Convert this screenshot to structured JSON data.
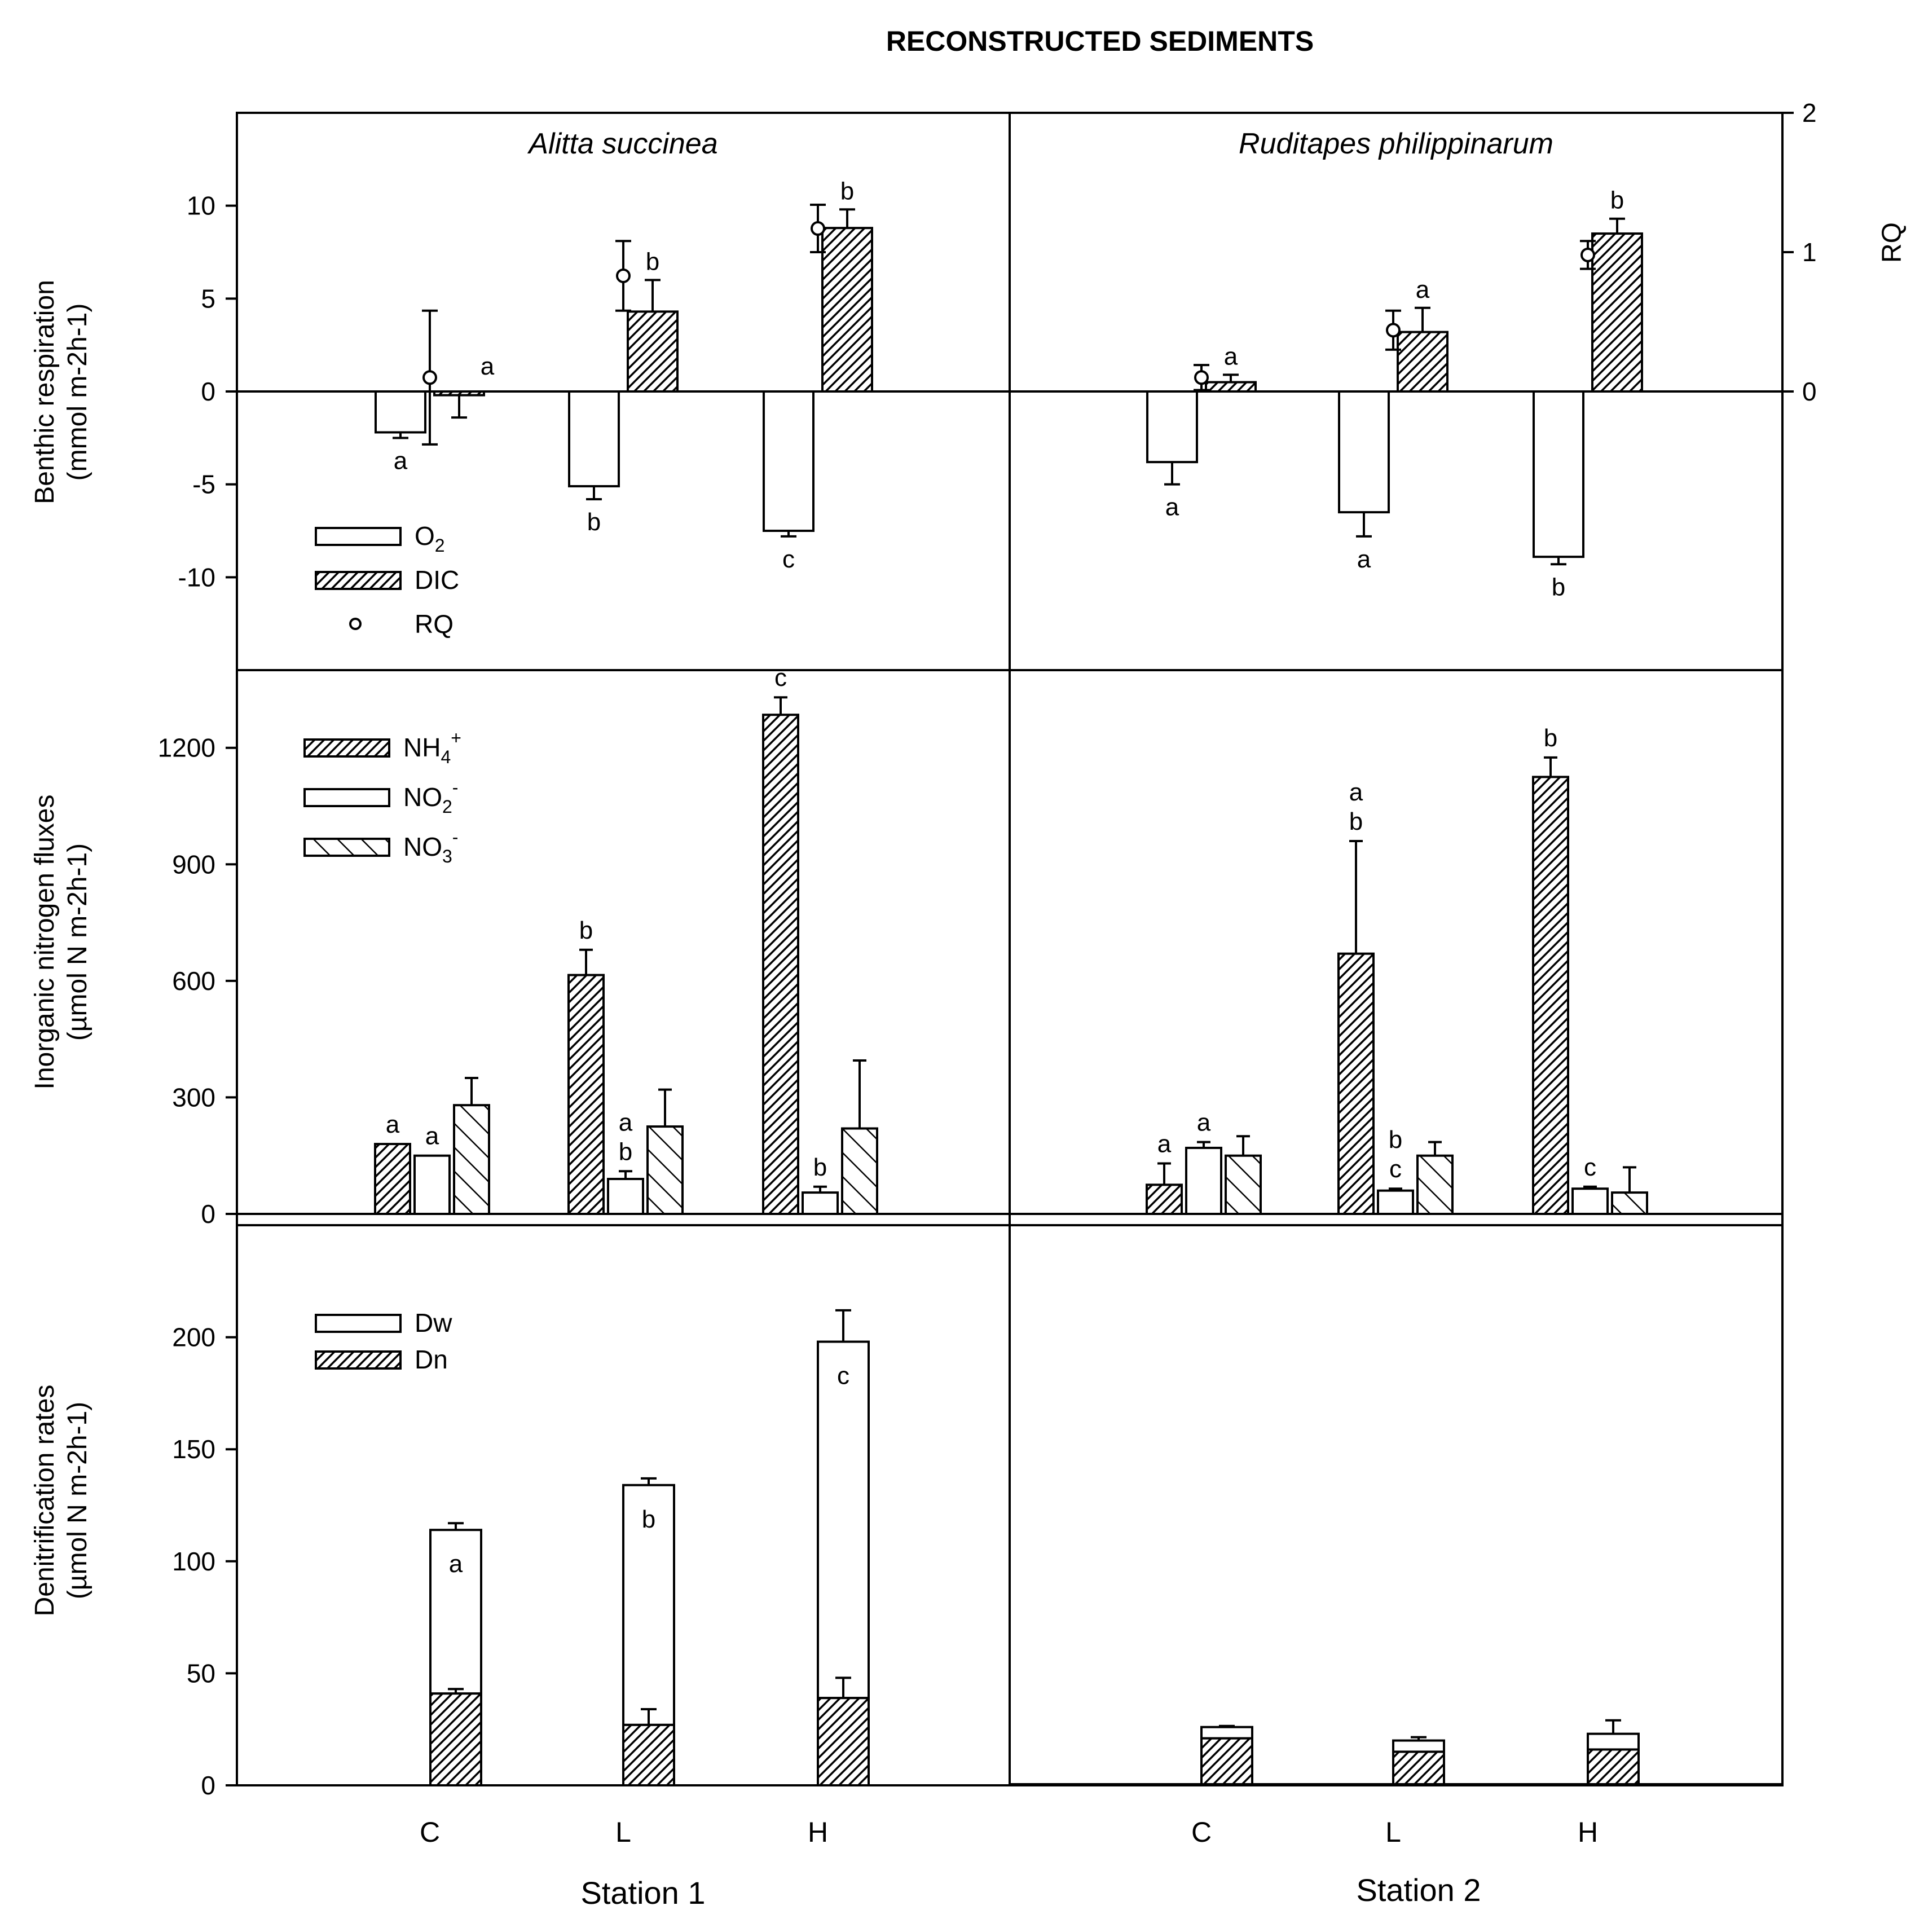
{
  "chart_data": {
    "title": "RECONSTRUCTED SEDIMENTS",
    "type": "bar",
    "categories": [
      "C",
      "L",
      "H"
    ],
    "stations": [
      "Station 1",
      "Station 2"
    ],
    "column_titles": [
      "Alitta succinea",
      "Ruditapes philippinarum"
    ],
    "panels": [
      {
        "id": "respiration",
        "ylabel_line1": "Benthic respiration",
        "ylabel_line2": "(mmol m-2h-1)",
        "ylim": [
          -15,
          15
        ],
        "yticks": [
          10,
          5,
          0,
          -5,
          -10
        ],
        "y2label": "RQ",
        "y2lim": [
          -2,
          2
        ],
        "y2ticks": [
          2,
          1,
          0
        ],
        "legend": [
          {
            "label": "O",
            "sub": "2",
            "sup": "",
            "pattern": "open"
          },
          {
            "label": "DIC",
            "sub": "",
            "sup": "",
            "pattern": "dense"
          },
          {
            "label": "RQ",
            "sub": "",
            "sup": "",
            "pattern": "circle"
          }
        ],
        "series": [
          {
            "name": "O2",
            "pattern": "open",
            "station1": [
              -2.2,
              -5.1,
              -7.5
            ],
            "station2": [
              -3.8,
              -6.5,
              -8.9
            ],
            "err1": [
              0.3,
              0.7,
              0.3
            ],
            "err2": [
              1.2,
              1.3,
              0.4
            ],
            "letters1": [
              "a",
              "b",
              "c"
            ],
            "letters2": [
              "a",
              "a",
              "b"
            ]
          },
          {
            "name": "DIC",
            "pattern": "dense",
            "station1": [
              -0.2,
              4.3,
              8.8
            ],
            "station2": [
              0.5,
              3.2,
              8.5
            ],
            "err1": [
              1.2,
              1.7,
              1.0
            ],
            "err2": [
              0.4,
              1.3,
              0.8
            ],
            "letters1": [
              "a",
              "b",
              "b"
            ],
            "letters2": [
              "a",
              "a",
              "b"
            ]
          },
          {
            "name": "RQ",
            "pattern": "circle",
            "station1": [
              0.1,
              0.83,
              1.17
            ],
            "station2": [
              0.1,
              0.44,
              0.98
            ],
            "err1": [
              0.48,
              0.25,
              0.17
            ],
            "err2": [
              0.09,
              0.14,
              0.1
            ]
          }
        ]
      },
      {
        "id": "nitrogen",
        "ylabel_line1": "Inorganic nitrogen fluxes",
        "ylabel_line2": "(µmol N m-2h-1)",
        "ylim": [
          0,
          1400
        ],
        "yticks": [
          1200,
          900,
          600,
          300,
          0
        ],
        "legend": [
          {
            "label": "NH",
            "sub": "4",
            "sup": "+",
            "pattern": "dense"
          },
          {
            "label": "NO",
            "sub": "2",
            "sup": "-",
            "pattern": "open"
          },
          {
            "label": "NO",
            "sub": "3",
            "sup": "-",
            "pattern": "wide"
          }
        ],
        "series": [
          {
            "name": "NH4+",
            "pattern": "dense",
            "station1": [
              180,
              615,
              1285
            ],
            "station2": [
              75,
              670,
              1125
            ],
            "err1": [
              0,
              65,
              45
            ],
            "err2": [
              55,
              290,
              50
            ],
            "letters1": [
              "a",
              "b",
              "c"
            ],
            "letters2": [
              "a",
              "a b",
              "b"
            ]
          },
          {
            "name": "NO2-",
            "pattern": "open",
            "station1": [
              150,
              90,
              55
            ],
            "station2": [
              170,
              60,
              65
            ],
            "err1": [
              0,
              20,
              15
            ],
            "err2": [
              15,
              5,
              5
            ],
            "letters1": [
              "a",
              "a b",
              "b"
            ],
            "letters2": [
              "a",
              "b c",
              "c"
            ]
          },
          {
            "name": "NO3-",
            "pattern": "wide",
            "station1": [
              280,
              225,
              220
            ],
            "station2": [
              150,
              150,
              55
            ],
            "err1": [
              70,
              95,
              175
            ],
            "err2": [
              50,
              35,
              65
            ]
          }
        ]
      },
      {
        "id": "denitrification",
        "ylabel_line1": "Denitrification rates",
        "ylabel_line2": "(µmol N m-2h-1)",
        "ylim": [
          0,
          250
        ],
        "yticks": [
          200,
          150,
          100,
          50,
          0
        ],
        "legend": [
          {
            "label": "Dw",
            "sub": "",
            "sup": "",
            "pattern": "open"
          },
          {
            "label": "Dn",
            "sub": "",
            "sup": "",
            "pattern": "dense"
          }
        ],
        "stacked": true,
        "series": [
          {
            "name": "Dw",
            "pattern": "open",
            "station1": [
              73,
              107,
              159
            ],
            "station2": [
              5,
              5,
              7
            ],
            "err1": [
              3,
              3,
              14
            ],
            "err2": [
              0.5,
              1.5,
              6
            ],
            "letters1": [
              "a",
              "b",
              "c"
            ]
          },
          {
            "name": "Dn",
            "pattern": "dense",
            "station1": [
              41,
              27,
              39
            ],
            "station2": [
              21,
              15,
              16
            ],
            "err1": [
              2,
              7,
              9
            ],
            "err2": [
              0,
              0,
              0
            ]
          }
        ]
      }
    ]
  }
}
